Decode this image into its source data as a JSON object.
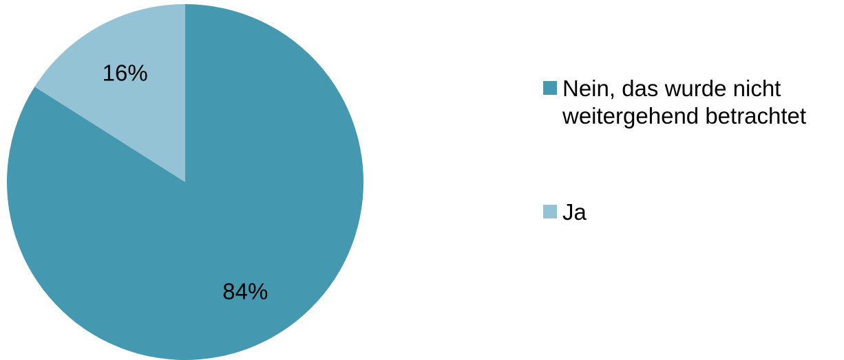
{
  "chart_data": {
    "type": "pie",
    "title": "",
    "legend_position": "right",
    "start_angle_deg": 0,
    "direction": "clockwise",
    "slices": [
      {
        "label": "Nein, das wurde nicht weitergehend betrachtet",
        "legend_lines": [
          "Nein, das wurde nicht",
          "weitergehend betrachtet"
        ],
        "value": 84,
        "value_label": "84%",
        "color": "#4499B0"
      },
      {
        "label": "Ja",
        "legend_lines": [
          "Ja"
        ],
        "value": 16,
        "value_label": "16%",
        "color": "#93C3D4"
      }
    ]
  }
}
